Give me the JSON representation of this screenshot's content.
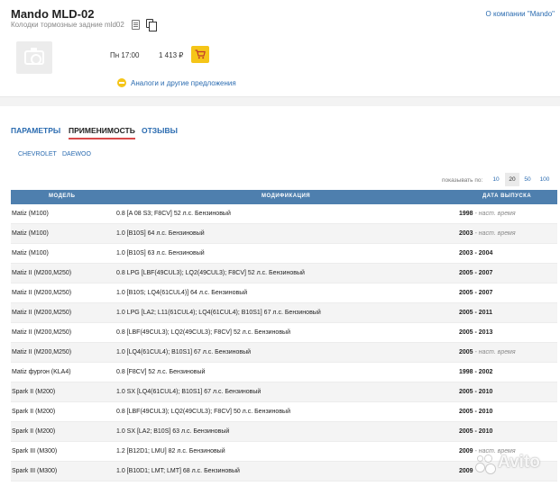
{
  "product": {
    "title": "Mando MLD-02",
    "subtitle": "Колодки тормозные задние mld02",
    "company_link": "О компании \"Mando\"",
    "delivery": "Пн 17:00",
    "price": "1 413 ₽",
    "analogs_link": "Аналоги и другие предложения",
    "accent_color": "#f5c518"
  },
  "tabs": [
    {
      "label": "ПАРАМЕТРЫ",
      "active": false
    },
    {
      "label": "ПРИМЕНИМОСТЬ",
      "active": true
    },
    {
      "label": "ОТЗЫВЫ",
      "active": false
    }
  ],
  "brands": [
    "CHEVROLET",
    "DAEWOO"
  ],
  "pager": {
    "label": "показывать по:",
    "options": [
      "10",
      "20",
      "50",
      "100"
    ],
    "selected": "20"
  },
  "table": {
    "header_color": "#4e7fae",
    "columns": [
      "МОДЕЛЬ",
      "МОДИФИКАЦИЯ",
      "ДАТА ВЫПУСКА"
    ],
    "rows": [
      {
        "model": "Matiz (M100)",
        "modification": "0.8 [A 08 S3; F8CV] 52 л.с. Бензиновый",
        "date": "1998",
        "date_suffix": " - наст. время"
      },
      {
        "model": "Matiz (M100)",
        "modification": "1.0 [B10S] 64 л.с. Бензиновый",
        "date": "2003",
        "date_suffix": " - наст. время"
      },
      {
        "model": "Matiz (M100)",
        "modification": "1.0 [B10S] 63 л.с. Бензиновый",
        "date": "2003 - 2004",
        "date_suffix": ""
      },
      {
        "model": "Matiz II (M200,M250)",
        "modification": "0.8 LPG [LBF(49CUL3); LQ2(49CUL3); F8CV] 52 л.с. Бензиновый",
        "date": "2005 - 2007",
        "date_suffix": ""
      },
      {
        "model": "Matiz II (M200,M250)",
        "modification": "1.0 [B10S; LQ4(61CUL4)] 64 л.с. Бензиновый",
        "date": "2005 - 2007",
        "date_suffix": ""
      },
      {
        "model": "Matiz II (M200,M250)",
        "modification": "1.0 LPG [LA2; L11(61CUL4); LQ4(61CUL4); B10S1] 67 л.с. Бензиновый",
        "date": "2005 - 2011",
        "date_suffix": ""
      },
      {
        "model": "Matiz II (M200,M250)",
        "modification": "0.8 [LBF(49CUL3); LQ2(49CUL3); F8CV] 52 л.с. Бензиновый",
        "date": "2005 - 2013",
        "date_suffix": ""
      },
      {
        "model": "Matiz II (M200,M250)",
        "modification": "1.0 [LQ4(61CUL4); B10S1] 67 л.с. Бензиновый",
        "date": "2005",
        "date_suffix": " - наст. время"
      },
      {
        "model": "Matiz фургон (KLA4)",
        "modification": "0.8 [F8CV] 52 л.с. Бензиновый",
        "date": "1998 - 2002",
        "date_suffix": ""
      },
      {
        "model": "Spark II (M200)",
        "modification": "1.0 SX [LQ4(61CUL4); B10S1] 67 л.с. Бензиновый",
        "date": "2005 - 2010",
        "date_suffix": ""
      },
      {
        "model": "Spark II (M200)",
        "modification": "0.8 [LBF(49CUL3); LQ2(49CUL3); F8CV] 50 л.с. Бензиновый",
        "date": "2005 - 2010",
        "date_suffix": ""
      },
      {
        "model": "Spark II (M200)",
        "modification": "1.0 SX [LA2; B10S] 63 л.с. Бензиновый",
        "date": "2005 - 2010",
        "date_suffix": ""
      },
      {
        "model": "Spark III (M300)",
        "modification": "1.2 [B12D1; LMU] 82 л.с. Бензиновый",
        "date": "2009",
        "date_suffix": " - наст. время"
      },
      {
        "model": "Spark III (M300)",
        "modification": "1.0 [B10D1; LMT; LMT] 68 л.с. Бензиновый",
        "date": "2009",
        "date_suffix": ""
      }
    ]
  },
  "watermark": {
    "text": "Avito",
    "icon": "avito-logo-icon"
  }
}
